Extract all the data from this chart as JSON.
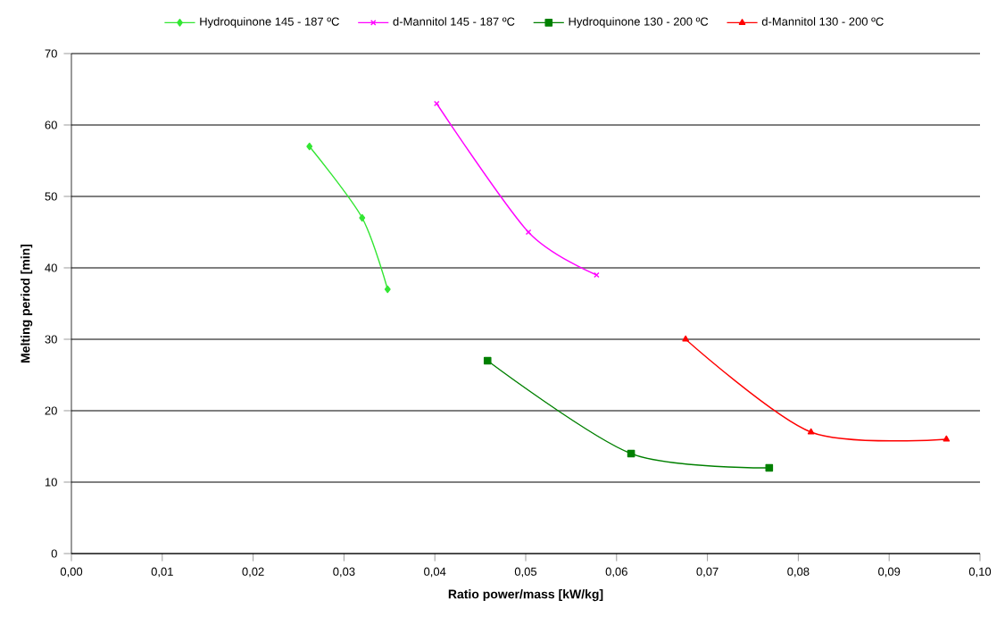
{
  "chart_data": {
    "type": "line",
    "xlabel": "Ratio power/mass [kW/kg]",
    "ylabel": "Melting period [min]",
    "xlim": [
      0,
      0.1
    ],
    "ylim": [
      0,
      70
    ],
    "xticks": [
      {
        "value": 0,
        "label": "0,00"
      },
      {
        "value": 0.01,
        "label": "0,01"
      },
      {
        "value": 0.02,
        "label": "0,02"
      },
      {
        "value": 0.03,
        "label": "0,03"
      },
      {
        "value": 0.04,
        "label": "0,04"
      },
      {
        "value": 0.05,
        "label": "0,05"
      },
      {
        "value": 0.06,
        "label": "0,06"
      },
      {
        "value": 0.07,
        "label": "0,07"
      },
      {
        "value": 0.08,
        "label": "0,08"
      },
      {
        "value": 0.09,
        "label": "0,09"
      },
      {
        "value": 0.1,
        "label": "0,10"
      }
    ],
    "yticks": [
      0,
      10,
      20,
      30,
      40,
      50,
      60,
      70
    ],
    "grid": "y",
    "legend": "top",
    "line_style": "solid",
    "series": [
      {
        "name": "Hydroquinone 145 - 187 ºC",
        "color": "#33e633",
        "marker": "diamond",
        "x": [
          0.0262,
          0.032,
          0.0348
        ],
        "values": [
          57,
          47,
          37
        ]
      },
      {
        "name": "d-Mannitol 145 - 187 ºC",
        "color": "#ff00ff",
        "marker": "cross",
        "x": [
          0.0402,
          0.0503,
          0.0578
        ],
        "values": [
          63,
          45,
          39
        ]
      },
      {
        "name": "Hydroquinone 130 - 200 ºC",
        "color": "#008000",
        "marker": "square",
        "x": [
          0.0458,
          0.0616,
          0.0768
        ],
        "values": [
          27,
          14,
          12
        ]
      },
      {
        "name": "d-Mannitol 130 - 200 ºC",
        "color": "#ff0000",
        "marker": "triangle",
        "x": [
          0.0676,
          0.0814,
          0.0963
        ],
        "values": [
          30,
          17,
          16
        ]
      }
    ]
  }
}
